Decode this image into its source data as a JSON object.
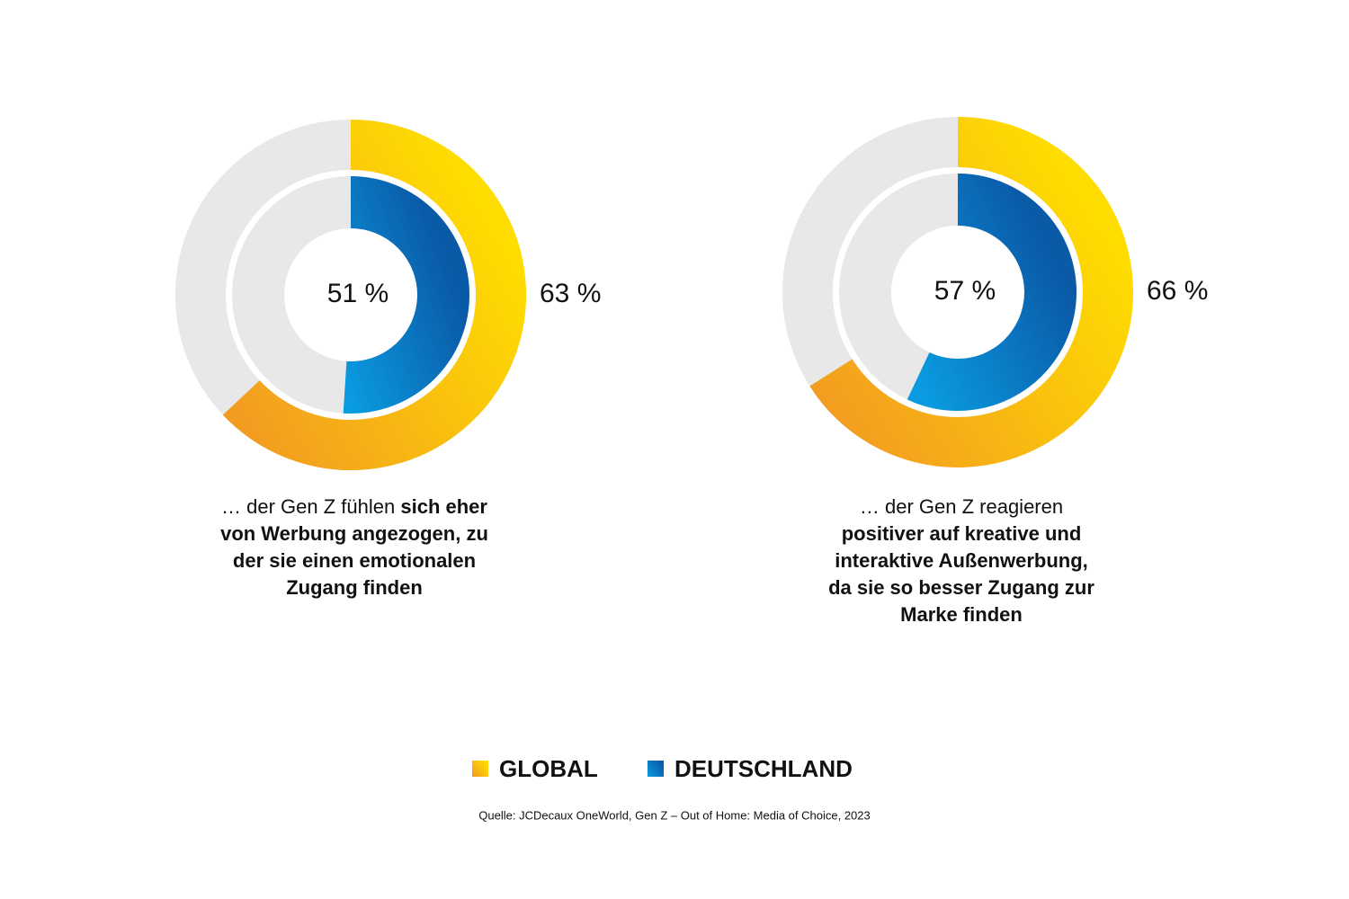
{
  "series": [
    {
      "name": "GLOBAL",
      "colors": [
        "#f29a22",
        "#ffdd00"
      ]
    },
    {
      "name": "DEUTSCHLAND",
      "colors": [
        "#0a9be0",
        "#0a5aa8"
      ]
    }
  ],
  "chart_data": [
    {
      "type": "donut",
      "values": [
        63,
        51
      ],
      "value_labels": [
        "63 %",
        "51 %"
      ],
      "caption": [
        [
          {
            "text": "… der Gen Z fühlen ",
            "bold": false
          },
          {
            "text": "sich eher",
            "bold": true
          }
        ],
        [
          {
            "text": "von Werbung angezogen, zu",
            "bold": true
          }
        ],
        [
          {
            "text": "der sie einen emotionalen",
            "bold": true
          }
        ],
        [
          {
            "text": "Zugang finden",
            "bold": true
          }
        ]
      ]
    },
    {
      "type": "donut",
      "values": [
        66,
        57
      ],
      "value_labels": [
        "66 %",
        "57 %"
      ],
      "caption": [
        [
          {
            "text": "… der Gen Z reagieren",
            "bold": false
          }
        ],
        [
          {
            "text": "positiver auf kreative und",
            "bold": true
          }
        ],
        [
          {
            "text": "interaktive Außenwerbung,",
            "bold": true
          }
        ],
        [
          {
            "text": "da sie so besser Zugang zur",
            "bold": true
          }
        ],
        [
          {
            "text": "Marke finden",
            "bold": true
          }
        ]
      ]
    }
  ],
  "source": "Quelle: JCDecaux OneWorld, Gen Z – Out of Home: Media of Choice, 2023"
}
